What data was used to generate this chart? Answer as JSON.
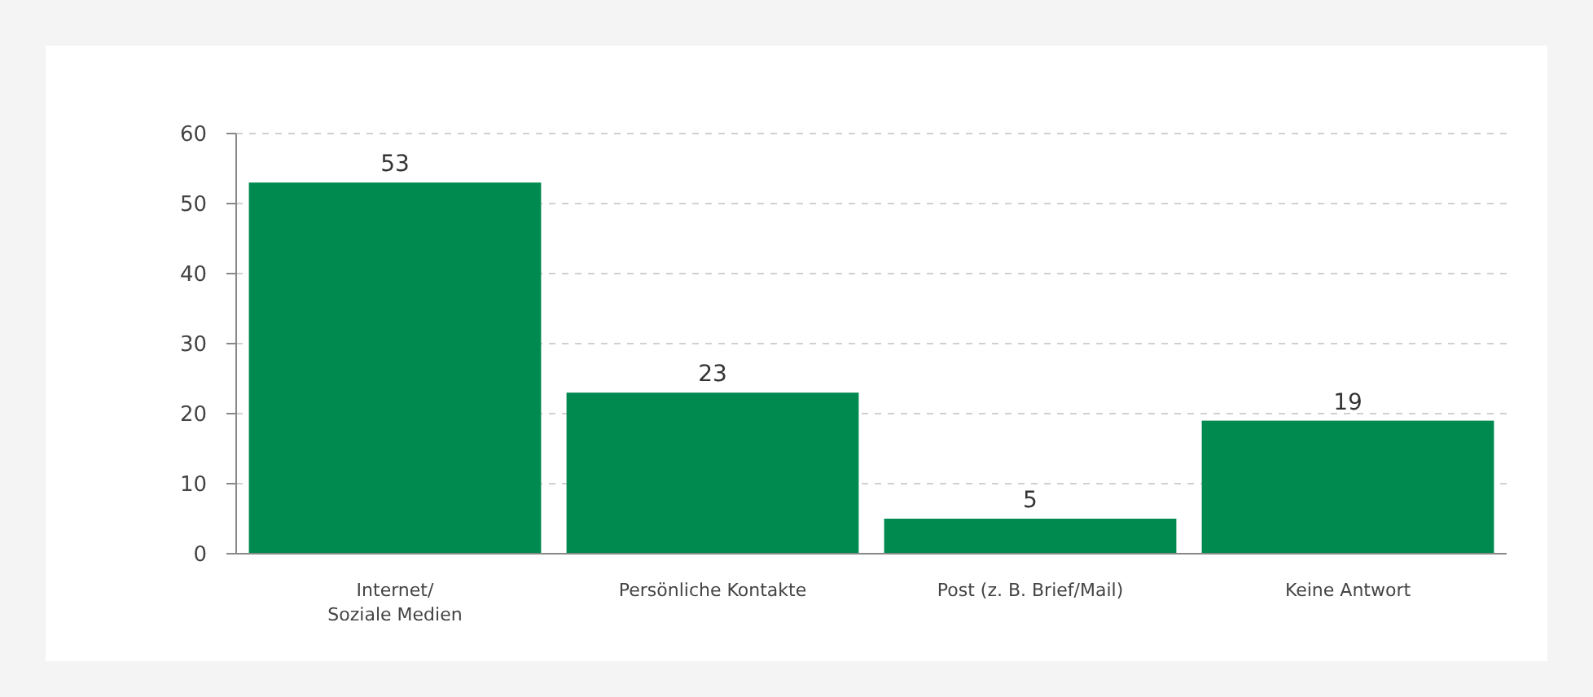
{
  "chart_data": {
    "type": "bar",
    "categories": [
      "Internet/\nSoziale Medien",
      "Persönliche Kontakte",
      "Post (z. B. Brief/Mail)",
      "Keine Antwort"
    ],
    "values": [
      53,
      23,
      5,
      19
    ],
    "color": "#008a4f",
    "ylim": [
      0,
      60
    ],
    "yticks": [
      0,
      10,
      20,
      30,
      40,
      50,
      60
    ],
    "grid": "y",
    "data_labels": true
  }
}
